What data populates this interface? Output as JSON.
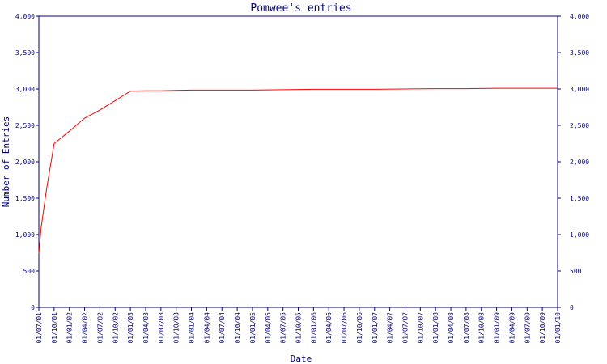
{
  "chart_data": {
    "type": "line",
    "title": "Pomwee's entries",
    "xlabel": "Date",
    "ylabel": "Number of Entries",
    "ylim": [
      0,
      4000
    ],
    "y_ticks": [
      "0",
      "500",
      "1,000",
      "1,500",
      "2,000",
      "2,500",
      "3,000",
      "3,500",
      "4,000"
    ],
    "x_ticks": [
      "01/07/01",
      "01/10/01",
      "01/01/02",
      "01/04/02",
      "01/07/02",
      "01/10/02",
      "01/01/03",
      "01/04/03",
      "01/07/03",
      "01/10/03",
      "01/01/04",
      "01/04/04",
      "01/07/04",
      "01/10/04",
      "01/01/05",
      "01/04/05",
      "01/07/05",
      "01/10/05",
      "01/01/06",
      "01/04/06",
      "01/07/06",
      "01/10/06",
      "01/01/07",
      "01/04/07",
      "01/07/07",
      "01/10/07",
      "01/01/08",
      "01/04/08",
      "01/07/08",
      "01/10/08",
      "01/01/09",
      "01/04/09",
      "01/07/09",
      "01/10/09",
      "01/01/10"
    ],
    "grid": false,
    "series": [
      {
        "color": "#ff0000",
        "points": [
          {
            "x": "01/07/01",
            "y": 740
          },
          {
            "x": "15/07/01",
            "y": 1100
          },
          {
            "x": "15/08/01",
            "y": 1600
          },
          {
            "x": "01/10/01",
            "y": 2250
          },
          {
            "x": "01/01/02",
            "y": 2420
          },
          {
            "x": "01/04/02",
            "y": 2600
          },
          {
            "x": "01/07/02",
            "y": 2710
          },
          {
            "x": "01/10/02",
            "y": 2840
          },
          {
            "x": "01/01/03",
            "y": 2970
          },
          {
            "x": "01/04/03",
            "y": 2975
          },
          {
            "x": "01/07/03",
            "y": 2975
          },
          {
            "x": "01/10/03",
            "y": 2980
          },
          {
            "x": "01/01/04",
            "y": 2985
          },
          {
            "x": "01/07/04",
            "y": 2985
          },
          {
            "x": "01/01/05",
            "y": 2985
          },
          {
            "x": "01/07/05",
            "y": 2990
          },
          {
            "x": "01/01/06",
            "y": 2995
          },
          {
            "x": "01/07/06",
            "y": 2995
          },
          {
            "x": "01/01/07",
            "y": 2995
          },
          {
            "x": "01/07/07",
            "y": 3000
          },
          {
            "x": "01/01/08",
            "y": 3005
          },
          {
            "x": "01/07/08",
            "y": 3005
          },
          {
            "x": "01/01/09",
            "y": 3010
          },
          {
            "x": "01/07/09",
            "y": 3010
          },
          {
            "x": "01/01/10",
            "y": 3010
          }
        ]
      }
    ]
  },
  "colors": {
    "axis": "#000080",
    "text": "#000080",
    "line": "#ff0000",
    "background": "#ffffff"
  }
}
